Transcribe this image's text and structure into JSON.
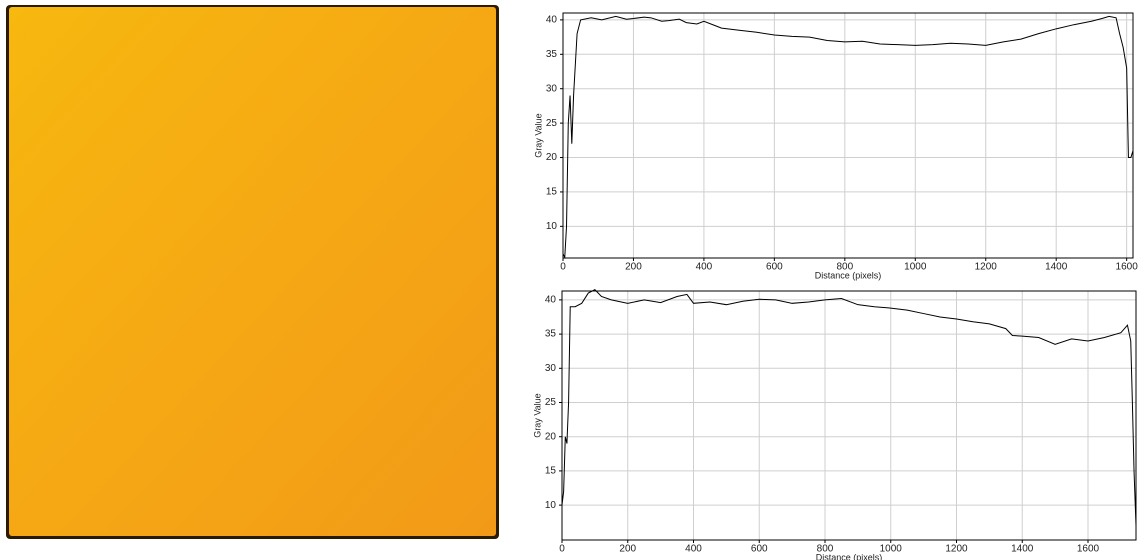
{
  "chart_data": [
    {
      "type": "line",
      "xlabel": "Distance (pixels)",
      "ylabel": "Gray Value",
      "x": [
        0,
        5,
        10,
        15,
        20,
        25,
        30,
        40,
        50,
        80,
        110,
        150,
        180,
        200,
        230,
        250,
        280,
        300,
        330,
        350,
        380,
        400,
        430,
        450,
        500,
        550,
        600,
        650,
        700,
        750,
        800,
        850,
        900,
        950,
        1000,
        1050,
        1100,
        1150,
        1200,
        1250,
        1300,
        1350,
        1400,
        1450,
        1500,
        1530,
        1550,
        1570,
        1580,
        1590,
        1600,
        1605,
        1612,
        1618
      ],
      "series": [
        {
          "color": "#000000",
          "values": [
            6,
            5.5,
            10,
            25,
            29,
            22,
            29,
            38,
            40,
            40.3,
            40,
            40.5,
            40.1,
            40.2,
            40.4,
            40.3,
            39.8,
            39.9,
            40.1,
            39.6,
            39.4,
            39.8,
            39.2,
            38.8,
            38.5,
            38.2,
            37.8,
            37.6,
            37.5,
            37,
            36.8,
            36.9,
            36.5,
            36.4,
            36.3,
            36.4,
            36.6,
            36.5,
            36.3,
            36.8,
            37.2,
            38,
            38.7,
            39.3,
            39.8,
            40.2,
            40.5,
            40.3,
            38,
            36,
            33,
            20,
            20,
            21
          ]
        }
      ],
      "xlim": [
        0,
        1618
      ],
      "ylim": [
        5.4,
        41
      ],
      "xticks": [
        0,
        200,
        400,
        600,
        800,
        1000,
        1200,
        1400,
        1600
      ],
      "yticks": [
        10,
        15,
        20,
        25,
        30,
        35,
        40
      ],
      "grid": true
    },
    {
      "type": "line",
      "xlabel": "Distance (pixels)",
      "ylabel": "Gray Value",
      "x": [
        0,
        5,
        10,
        15,
        20,
        25,
        40,
        60,
        80,
        100,
        120,
        150,
        200,
        250,
        300,
        350,
        380,
        400,
        450,
        500,
        550,
        600,
        650,
        700,
        750,
        800,
        850,
        900,
        950,
        1000,
        1050,
        1100,
        1150,
        1200,
        1250,
        1300,
        1350,
        1370,
        1400,
        1450,
        1500,
        1550,
        1600,
        1650,
        1700,
        1720,
        1730,
        1735,
        1740,
        1746
      ],
      "series": [
        {
          "color": "#000000",
          "values": [
            10,
            12,
            20,
            19,
            25,
            39,
            39,
            39.5,
            41,
            41.5,
            40.5,
            40,
            39.5,
            40,
            39.6,
            40.5,
            40.8,
            39.5,
            39.7,
            39.3,
            39.8,
            40.1,
            40,
            39.5,
            39.7,
            40,
            40.2,
            39.3,
            39,
            38.8,
            38.5,
            38,
            37.5,
            37.2,
            36.8,
            36.5,
            35.8,
            34.8,
            34.7,
            34.5,
            33.5,
            34.3,
            34,
            34.5,
            35.2,
            36.3,
            34,
            25,
            15,
            7
          ]
        }
      ],
      "xlim": [
        0,
        1746
      ],
      "ylim": [
        4.9,
        41.3
      ],
      "xticks": [
        0,
        200,
        400,
        600,
        800,
        1000,
        1200,
        1400,
        1600
      ],
      "yticks": [
        10,
        15,
        20,
        25,
        30,
        35,
        40
      ],
      "grid": true
    }
  ]
}
